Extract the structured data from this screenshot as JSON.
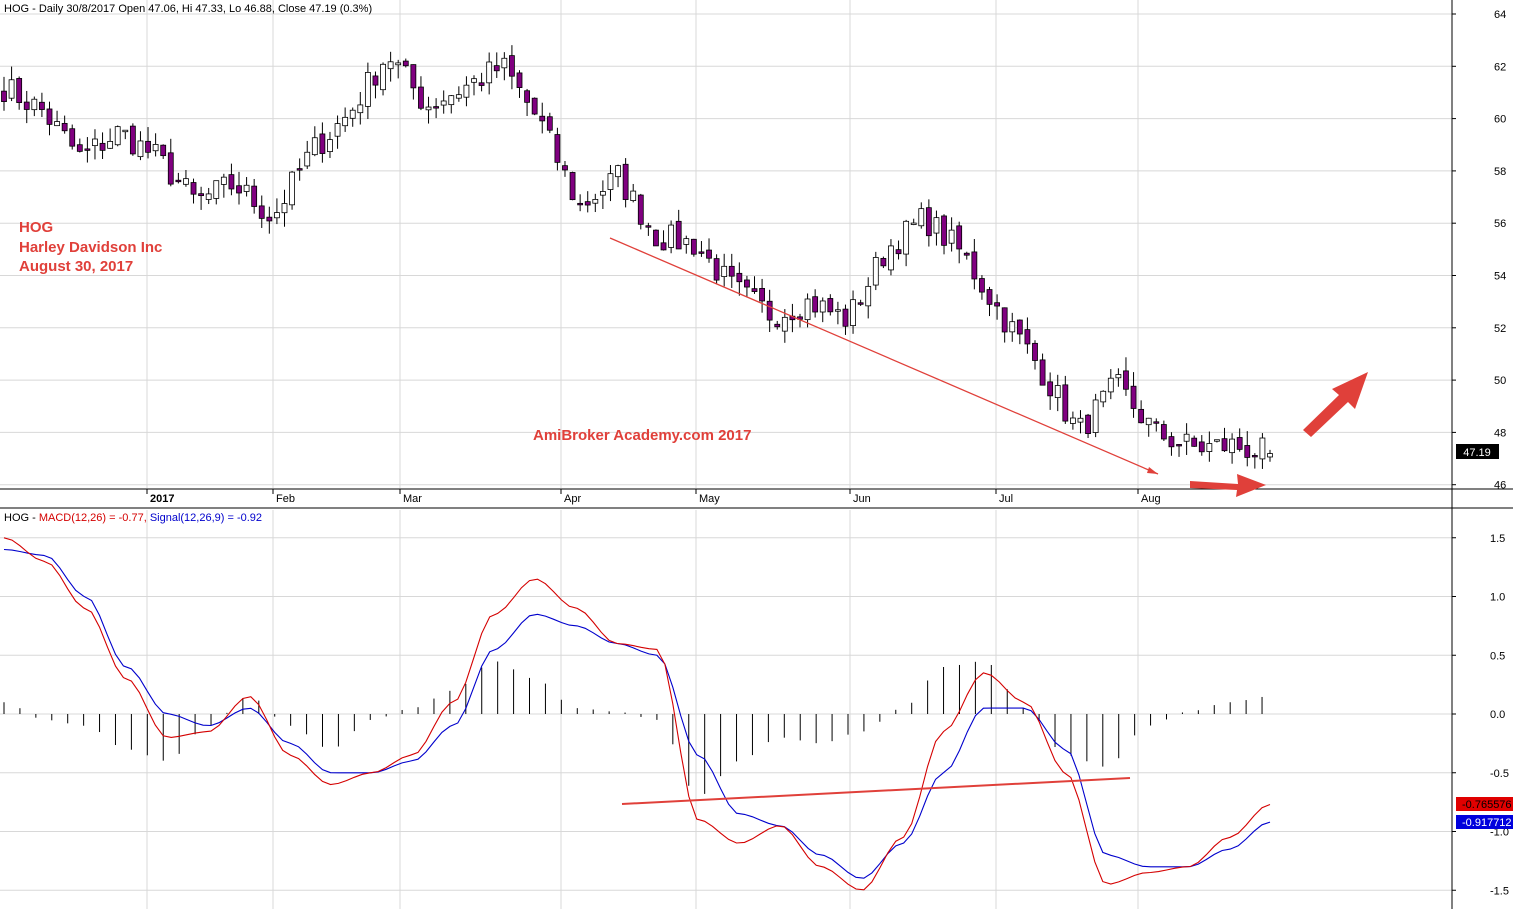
{
  "price_pane": {
    "header": "HOG - Daily 30/8/2017 Open 47.06, Hi 47.33, Lo 46.88, Close 47.19 (0.3%)",
    "annotation_lines": [
      "HOG",
      "Harley Davidson Inc",
      "August 30, 2017"
    ],
    "watermark": "AmiBroker Academy.com 2017",
    "last_price_label": "47.19"
  },
  "macd_pane": {
    "header_prefix": "HOG - ",
    "header_macd": "MACD(12,26) = -0.77,",
    "header_signal": "Signal(12,26,9) = -0.92",
    "macd_label": "-0.765576",
    "signal_label": "-0.917712"
  },
  "colors": {
    "bear_candle": "#800080",
    "bull_candle": "#ffffff",
    "macd_line": "#d40000",
    "signal_line": "#0000cc",
    "annotation": "#e0403a",
    "grid": "#d8d8d8"
  },
  "chart_data": [
    {
      "type": "candlestick",
      "title": "HOG - Daily 30/8/2017",
      "x_labels": [
        "2017",
        "Feb",
        "Mar",
        "Apr",
        "May",
        "Jun",
        "Jul",
        "Aug"
      ],
      "ylim": [
        45.5,
        64.2
      ],
      "y_ticks": [
        46,
        48,
        50,
        52,
        54,
        56,
        58,
        60,
        62,
        64
      ],
      "last": {
        "open": 47.06,
        "high": 47.33,
        "low": 46.88,
        "close": 47.19,
        "change_pct": 0.3
      },
      "close_path": [
        [
          "Jan",
          61.2
        ],
        [
          "Jan",
          60.3
        ],
        [
          "Jan",
          58.5
        ],
        [
          "2017",
          59.5
        ],
        [
          "2017",
          58.5
        ],
        [
          "Feb",
          56.8
        ],
        [
          "Feb",
          57.5
        ],
        [
          "Feb",
          56.2
        ],
        [
          "Mar",
          58.7
        ],
        [
          "Mar",
          60.2
        ],
        [
          "Mar",
          62.5
        ],
        [
          "Mar",
          60.5
        ],
        [
          "Apr",
          61.2
        ],
        [
          "Apr",
          62.0
        ],
        [
          "Apr",
          59.8
        ],
        [
          "Apr",
          56.6
        ],
        [
          "May",
          57.8
        ],
        [
          "May",
          55.5
        ],
        [
          "May",
          55.2
        ],
        [
          "May",
          53.5
        ],
        [
          "May",
          52.5
        ],
        [
          "Jun",
          53.0
        ],
        [
          "Jun",
          52.3
        ],
        [
          "Jun",
          55.0
        ],
        [
          "Jun",
          56.2
        ],
        [
          "Jun",
          54.8
        ],
        [
          "Jul",
          52.5
        ],
        [
          "Jul",
          50.5
        ],
        [
          "Jul",
          48.0
        ],
        [
          "Jul",
          49.8
        ],
        [
          "Aug",
          48.0
        ],
        [
          "Aug",
          47.4
        ],
        [
          "Aug",
          47.5
        ],
        [
          "Aug",
          47.19
        ]
      ],
      "drawn_trendline": {
        "from": [
          "Apr",
          55.3
        ],
        "to": [
          "Aug",
          46.5
        ]
      },
      "arrows": [
        "right (flat) after Aug",
        "up-right after Aug"
      ]
    },
    {
      "type": "line",
      "title": "HOG - MACD(12,26) = -0.77, Signal(12,26,9) = -0.92",
      "ylim": [
        -1.6,
        1.6
      ],
      "y_ticks": [
        -1.5,
        -1.0,
        -0.5,
        0.0,
        0.5,
        1.0,
        1.5
      ],
      "series": [
        {
          "name": "MACD(12,26)",
          "last": -0.765576,
          "values": [
            1.5,
            1.3,
            0.9,
            0.3,
            -0.2,
            -0.15,
            0.15,
            -0.35,
            -0.6,
            -0.5,
            -0.35,
            0.1,
            0.85,
            1.15,
            0.9,
            0.6,
            0.55,
            -0.9,
            -1.1,
            -0.95,
            -1.3,
            -1.5,
            -1.05,
            -0.15,
            0.35,
            0.1,
            -0.5,
            -1.45,
            -1.35,
            -1.3,
            -1.05,
            -0.77
          ]
        },
        {
          "name": "Signal(12,26,9)",
          "last": -0.917712,
          "values": [
            1.4,
            1.35,
            1.0,
            0.4,
            0.0,
            -0.1,
            0.05,
            -0.25,
            -0.5,
            -0.5,
            -0.4,
            -0.1,
            0.55,
            0.85,
            0.75,
            0.6,
            0.5,
            -0.35,
            -0.85,
            -0.95,
            -1.2,
            -1.4,
            -1.1,
            -0.5,
            0.05,
            0.05,
            -0.3,
            -1.2,
            -1.3,
            -1.3,
            -1.15,
            -0.92
          ]
        },
        {
          "name": "Histogram",
          "values": [
            0.1,
            -0.05,
            -0.1,
            -0.3,
            -0.4,
            -0.1,
            0.15,
            -0.1,
            -0.3,
            -0.05,
            0.05,
            0.2,
            0.45,
            0.3,
            0.05,
            0.02,
            -0.05,
            -0.7,
            -0.4,
            -0.2,
            -0.25,
            -0.15,
            0.05,
            0.4,
            0.45,
            0.05,
            -0.35,
            -0.45,
            -0.1,
            0.02,
            0.1,
            0.15
          ]
        }
      ],
      "drawn_trendline": "rising line under MACD lows (Apr to late Jul)"
    }
  ]
}
